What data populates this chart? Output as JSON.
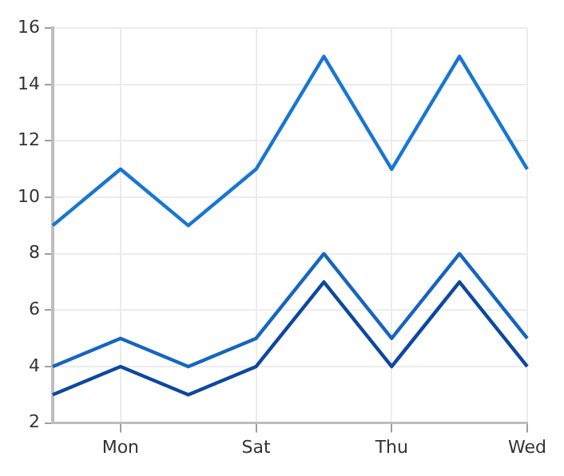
{
  "chart_data": {
    "type": "line",
    "categories": [
      null,
      "Mon",
      null,
      "Sat",
      null,
      "Thu",
      null,
      "Wed"
    ],
    "series": [
      {
        "color": "#1976d2",
        "values": [
          9,
          11,
          9,
          11,
          15,
          11,
          15,
          11
        ]
      },
      {
        "color": "#1565c0",
        "values": [
          4,
          5,
          4,
          5,
          8,
          5,
          8,
          5
        ]
      },
      {
        "color": "#0d47a1",
        "values": [
          3,
          4,
          3,
          4,
          7,
          4,
          7,
          4
        ]
      }
    ],
    "ylim": [
      2,
      16
    ],
    "yticks": [
      2,
      4,
      6,
      8,
      10,
      12,
      14,
      16
    ],
    "grid": true,
    "legend": false,
    "marker": "none",
    "line_style": "solid"
  }
}
